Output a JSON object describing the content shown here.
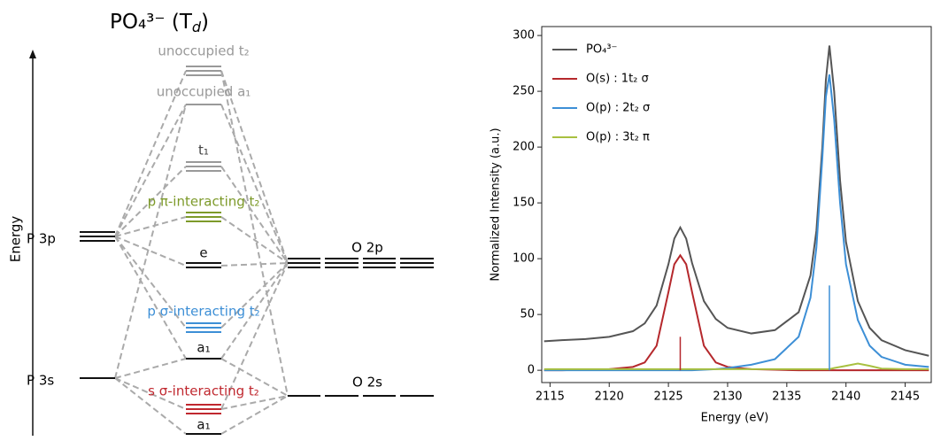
{
  "diagram": {
    "title": [
      "PO₄³⁻ (T",
      "d",
      ")"
    ],
    "axis_label": "Energy",
    "left_levels": [
      "P 3p",
      "P 3s"
    ],
    "right_levels": [
      "O 2p",
      "O 2s"
    ],
    "center_levels": [
      "unoccupied t₂",
      "unoccupied a₁",
      "t₁",
      "p π-interacting t₂",
      "e",
      "p σ-interacting t₂",
      "a₁",
      "s σ-interacting t₂",
      "a₁"
    ]
  },
  "chart_data": {
    "type": "line",
    "xlabel": "Energy (eV)",
    "ylabel": "Normalized Intensity (a.u.)",
    "x": [
      2114.5,
      2116,
      2118,
      2120,
      2122,
      2123,
      2124,
      2125,
      2125.5,
      2126,
      2126.5,
      2127,
      2128,
      2129,
      2130,
      2132,
      2134,
      2136,
      2137,
      2137.5,
      2138,
      2138.3,
      2138.6,
      2139,
      2139.5,
      2140,
      2141,
      2142,
      2143,
      2145,
      2147
    ],
    "xlim": [
      2114.3,
      2147.2
    ],
    "ylim": [
      -11,
      308
    ],
    "xticks": [
      2115,
      2120,
      2125,
      2130,
      2135,
      2140,
      2145
    ],
    "yticks": [
      0,
      50,
      100,
      150,
      200,
      250,
      300
    ],
    "series": [
      {
        "name": "PO₄³⁻",
        "color": "#555555",
        "values": [
          26,
          27,
          28,
          30,
          35,
          42,
          58,
          95,
          118,
          128,
          118,
          96,
          62,
          46,
          38,
          33,
          36,
          52,
          85,
          125,
          200,
          260,
          291,
          250,
          170,
          115,
          62,
          38,
          27,
          18,
          13
        ]
      },
      {
        "name": "O(s) : 1t₂ σ",
        "color": "#b5282c",
        "values": [
          0,
          0,
          0.5,
          1,
          3,
          7,
          22,
          70,
          95,
          103,
          95,
          70,
          22,
          7,
          3,
          1,
          0.5,
          0,
          0,
          0,
          0,
          0,
          0,
          0,
          0,
          0,
          0,
          0,
          0,
          0,
          0
        ]
      },
      {
        "name": "O(p) : 2t₂ σ",
        "color": "#3d8fd6",
        "values": [
          0,
          0,
          0,
          0,
          0,
          0,
          0,
          0,
          0,
          0,
          0,
          0,
          0.5,
          1,
          2,
          5,
          10,
          30,
          65,
          110,
          190,
          245,
          265,
          225,
          150,
          95,
          45,
          22,
          12,
          5,
          3
        ]
      },
      {
        "name": "O(p) : 3t₂ π",
        "color": "#a8c040",
        "values": [
          1,
          1,
          1,
          1,
          1,
          1,
          1,
          1,
          1,
          1,
          1,
          1,
          1,
          1,
          1,
          1,
          1,
          1,
          1,
          1,
          1,
          1,
          1,
          2,
          3,
          4,
          6,
          4,
          1.5,
          1,
          1
        ]
      }
    ],
    "sticks": [
      {
        "x": 2126,
        "value": 30,
        "color": "#b5282c"
      },
      {
        "x": 2138.6,
        "value": 76,
        "color": "#3d8fd6"
      }
    ]
  }
}
